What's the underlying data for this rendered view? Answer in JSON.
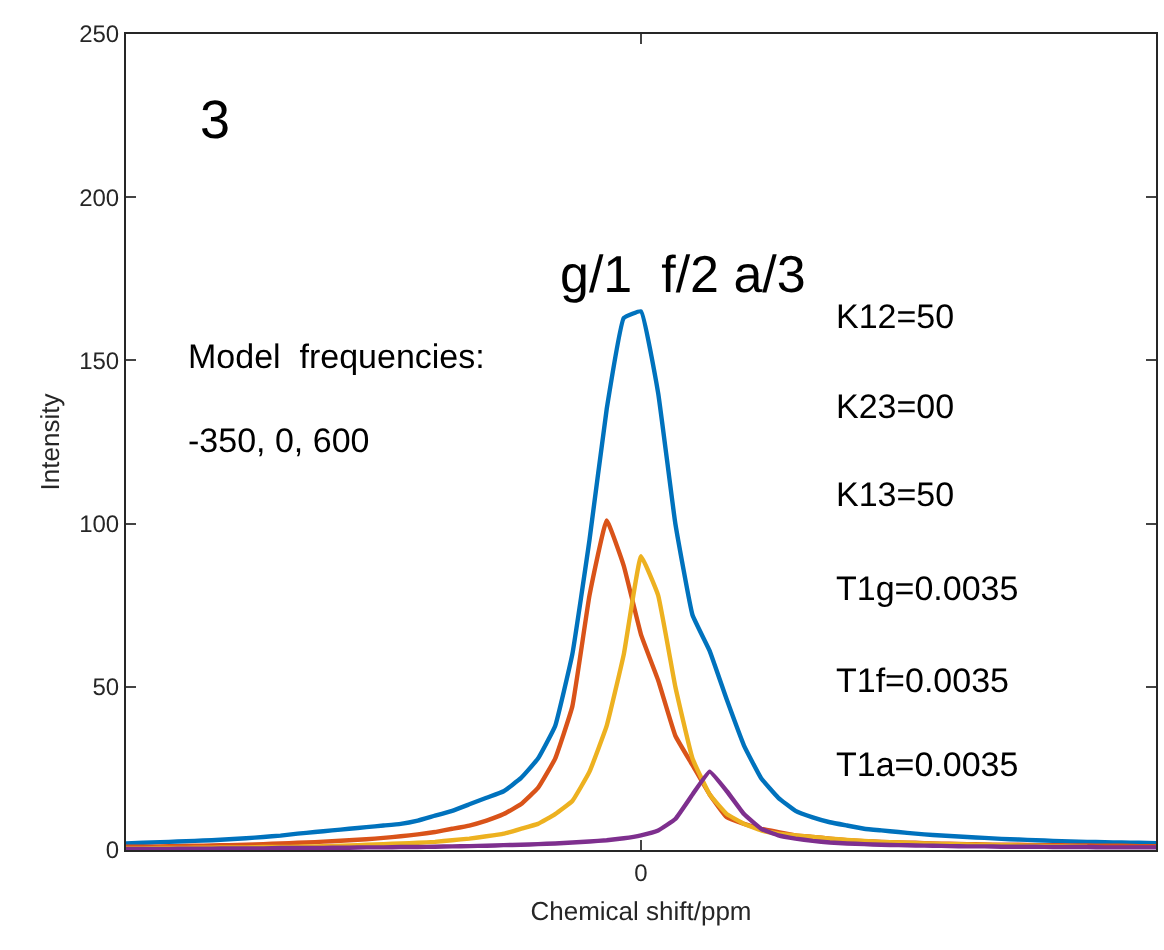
{
  "chart_data": {
    "type": "line",
    "xlabel": "Chemical shift/ppm",
    "ylabel": "Intensity",
    "categories": [
      null,
      null,
      null,
      null,
      null,
      null,
      null,
      null,
      null,
      null,
      null,
      null,
      null,
      null,
      null,
      null,
      null,
      null,
      null,
      null,
      null,
      null,
      null,
      null,
      null,
      null,
      null,
      null,
      null,
      null,
      "0",
      null,
      null,
      null,
      null,
      null,
      null,
      null,
      null,
      null,
      null,
      null,
      null,
      null,
      null,
      null,
      null,
      null,
      null,
      null,
      null,
      null,
      null,
      null,
      null,
      null,
      null,
      null,
      null,
      null,
      null
    ],
    "ylim": [
      0,
      250
    ],
    "yticks": [
      0,
      50,
      100,
      150,
      200,
      250
    ],
    "marker": "none",
    "line_style": "solid",
    "series": [
      {
        "color": "#0072bd",
        "values": [
          2,
          2.2,
          2.4,
          2.6,
          2.8,
          3,
          3.3,
          3.6,
          4,
          4.4,
          5,
          5.5,
          6,
          6.5,
          7,
          7.5,
          8,
          9,
          10.5,
          12,
          14,
          16,
          18,
          22,
          28,
          38,
          60,
          95,
          135,
          163,
          165,
          140,
          100,
          72,
          61,
          46,
          32,
          22,
          16,
          12,
          10,
          8.5,
          7.5,
          6.5,
          6,
          5.5,
          5,
          4.6,
          4.3,
          4,
          3.7,
          3.4,
          3.2,
          3,
          2.8,
          2.6,
          2.5,
          2.4,
          2.3,
          2.2,
          2.1
        ]
      },
      {
        "color": "#d95319",
        "values": [
          1,
          1,
          1.1,
          1.2,
          1.3,
          1.4,
          1.5,
          1.6,
          1.8,
          2,
          2.2,
          2.4,
          2.7,
          3,
          3.3,
          3.7,
          4.2,
          4.8,
          5.5,
          6.5,
          7.5,
          9,
          11,
          14,
          19,
          28,
          44,
          78,
          101,
          87,
          66,
          52,
          35,
          26,
          17,
          10,
          8,
          6.5,
          5.5,
          4.5,
          4,
          3.5,
          3,
          2.7,
          2.5,
          2.3,
          2.2,
          2,
          1.9,
          1.8,
          1.7,
          1.6,
          1.6,
          1.5,
          1.5,
          1.4,
          1.4,
          1.3,
          1.3,
          1.2,
          1.2
        ]
      },
      {
        "color": "#edb120",
        "values": [
          0.5,
          0.5,
          0.6,
          0.6,
          0.7,
          0.7,
          0.8,
          0.8,
          0.9,
          0.9,
          1,
          1.1,
          1.2,
          1.4,
          1.6,
          1.8,
          2,
          2.2,
          2.5,
          3,
          3.5,
          4.2,
          5,
          6.5,
          8,
          11,
          15,
          24,
          38,
          60,
          90,
          78,
          50,
          28,
          17,
          11,
          8,
          6,
          5,
          4.5,
          4,
          3.5,
          3.1,
          2.8,
          2.5,
          2.3,
          2.1,
          1.9,
          1.8,
          1.7,
          1.6,
          1.5,
          1.4,
          1.3,
          1.2,
          1.1,
          1,
          null,
          null,
          null,
          null
        ]
      },
      {
        "color": "#7e2f8e",
        "values": [
          0.3,
          0.3,
          0.3,
          0.4,
          0.4,
          0.4,
          0.5,
          0.5,
          0.5,
          0.6,
          0.6,
          0.6,
          0.7,
          0.7,
          0.8,
          0.8,
          0.9,
          0.9,
          1,
          1.1,
          1.2,
          1.3,
          1.5,
          1.6,
          1.8,
          2,
          2.3,
          2.6,
          3,
          3.6,
          4.5,
          6,
          9.5,
          17,
          24,
          18,
          11,
          6.5,
          4.5,
          3.5,
          2.8,
          2.3,
          2,
          1.8,
          1.6,
          1.5,
          1.4,
          1.3,
          1.2,
          1.1,
          1.1,
          1,
          1,
          1,
          0.9,
          0.9,
          0.9,
          0.8,
          0.8,
          0.8,
          0.8
        ]
      }
    ],
    "annotations": [
      "3",
      "g/1  f/2 a/3",
      "Model  frequencies:",
      "-350, 0, 600",
      "K12=50",
      "K23=00",
      "K13=50",
      "T1g=0.0035",
      "T1f=0.0035",
      "T1a=0.0035"
    ]
  }
}
